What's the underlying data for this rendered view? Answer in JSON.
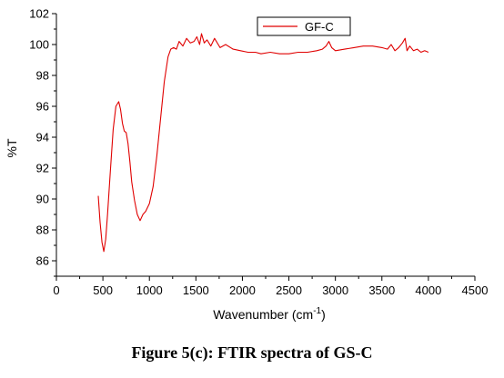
{
  "caption": "Figure 5(c): FTIR spectra of GS-C",
  "colors": {
    "series": "#e00000",
    "axis": "#000000"
  },
  "chart_data": {
    "type": "line",
    "xlabel": "Wavenumber (cm",
    "xlabel_sup": "-1",
    "xlabel_suffix": ")",
    "ylabel": "%T",
    "xlim": [
      0,
      4500
    ],
    "ylim": [
      85,
      102
    ],
    "xticks": [
      0,
      500,
      1000,
      1500,
      2000,
      2500,
      3000,
      3500,
      4000,
      4500
    ],
    "yticks": [
      86,
      88,
      90,
      92,
      94,
      96,
      98,
      100,
      102
    ],
    "grid": false,
    "legend_position": "top-center",
    "series": [
      {
        "name": "GF-C",
        "x": [
          450,
          470,
          490,
          510,
          530,
          550,
          580,
          610,
          640,
          670,
          690,
          710,
          730,
          750,
          770,
          790,
          810,
          840,
          870,
          900,
          930,
          960,
          1000,
          1040,
          1080,
          1120,
          1160,
          1200,
          1230,
          1260,
          1290,
          1320,
          1360,
          1400,
          1440,
          1480,
          1510,
          1540,
          1560,
          1590,
          1620,
          1660,
          1700,
          1760,
          1820,
          1900,
          1980,
          2060,
          2140,
          2200,
          2300,
          2400,
          2500,
          2600,
          2700,
          2800,
          2860,
          2900,
          2930,
          2960,
          3000,
          3100,
          3200,
          3300,
          3400,
          3500,
          3560,
          3600,
          3640,
          3680,
          3720,
          3750,
          3770,
          3800,
          3840,
          3880,
          3920,
          3960,
          4000
        ],
        "y": [
          90.2,
          88.5,
          87.2,
          86.6,
          87.4,
          89.0,
          91.8,
          94.5,
          96.0,
          96.3,
          95.8,
          94.9,
          94.4,
          94.3,
          93.6,
          92.4,
          91.1,
          89.9,
          89.0,
          88.6,
          89.0,
          89.2,
          89.7,
          90.8,
          92.8,
          95.2,
          97.6,
          99.2,
          99.7,
          99.8,
          99.7,
          100.2,
          99.9,
          100.4,
          100.1,
          100.2,
          100.5,
          100.0,
          100.7,
          100.1,
          100.3,
          99.9,
          100.4,
          99.8,
          100.0,
          99.7,
          99.6,
          99.5,
          99.5,
          99.4,
          99.5,
          99.4,
          99.4,
          99.5,
          99.5,
          99.6,
          99.7,
          99.9,
          100.2,
          99.8,
          99.6,
          99.7,
          99.8,
          99.9,
          99.9,
          99.8,
          99.7,
          100.0,
          99.6,
          99.8,
          100.1,
          100.4,
          99.6,
          99.9,
          99.6,
          99.7,
          99.5,
          99.6,
          99.5
        ]
      }
    ]
  }
}
